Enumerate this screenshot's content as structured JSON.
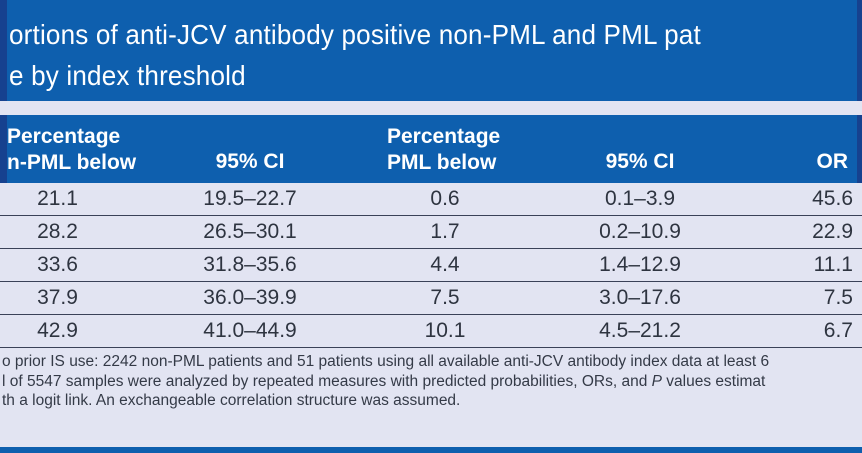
{
  "title": {
    "line1": "ortions of anti-JCV antibody positive non-PML and PML pat",
    "line2": "e by index threshold"
  },
  "table": {
    "header": {
      "col1_line1": "Percentage",
      "col1_line2": "n-PML below",
      "col2": "95% CI",
      "col3_line1": "Percentage",
      "col3_line2": "PML below",
      "col4": "95% CI",
      "col5": "OR"
    },
    "rows": [
      [
        "21.1",
        "19.5–22.7",
        "0.6",
        "0.1–3.9",
        "45.6"
      ],
      [
        "28.2",
        "26.5–30.1",
        "1.7",
        "0.2–10.9",
        "22.9"
      ],
      [
        "33.6",
        "31.8–35.6",
        "4.4",
        "1.4–12.9",
        "11.1"
      ],
      [
        "37.9",
        "36.0–39.9",
        "7.5",
        "3.0–17.6",
        "7.5"
      ],
      [
        "42.9",
        "41.0–44.9",
        "10.1",
        "4.5–21.2",
        "6.7"
      ]
    ]
  },
  "footnote": {
    "line1": "o prior IS use: 2242 non-PML patients and 51 patients using all available anti-JCV antibody index data at least 6",
    "line2_pre": "l of 5547 samples were analyzed by repeated measures with predicted probabilities, ORs, and ",
    "line2_italic": "P",
    "line2_post": " values estimat",
    "line3": "th a logit link. An exchangeable correlation structure was assumed."
  },
  "colors": {
    "band_blue": "#0e5fae",
    "edge_navy": "#16418f",
    "page_background": "#e2e4f2",
    "row_line": "#3a4158",
    "body_text": "#2e3440",
    "header_text": "#ffffff"
  }
}
